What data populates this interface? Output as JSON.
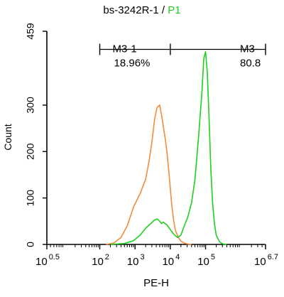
{
  "title": {
    "main": "bs-3242R-1 / ",
    "gate": "P1"
  },
  "colors": {
    "control": "#f08c3a",
    "sample": "#1fd01f",
    "gate_label": "#1fd01f",
    "axis": "#000000"
  },
  "markers": [
    {
      "name": "M3-1",
      "percent": "18.96%",
      "x_start": 100,
      "x_end": 10000
    },
    {
      "name": "M3-",
      "percent": "80.8",
      "x_start": 10000,
      "x_end": 5011872
    }
  ],
  "chart_data": {
    "type": "line",
    "title": "bs-3242R-1 / P1",
    "xlabel": "PE-H",
    "ylabel": "Count",
    "x_scale": "log10",
    "xlim": [
      3.1623,
      5011872
    ],
    "ylim": [
      0,
      459
    ],
    "x_ticks": [
      {
        "base": "10",
        "exp": "0.5",
        "value": 3.1623
      },
      {
        "base": "10",
        "exp": "2",
        "value": 100
      },
      {
        "base": "10",
        "exp": "3",
        "value": 1000
      },
      {
        "base": "10",
        "exp": "4",
        "value": 10000
      },
      {
        "base": "10",
        "exp": "5",
        "value": 100000
      },
      {
        "base": "10",
        "exp": "6.7",
        "value": 5011872
      }
    ],
    "y_ticks": [
      "0",
      "100",
      "200",
      "300",
      "459"
    ],
    "y_tick_values": [
      0,
      100,
      200,
      300,
      459
    ],
    "grid": false,
    "series": [
      {
        "color": "#f08c3a",
        "x": [
          150,
          250,
          400,
          600,
          900,
          1400,
          2000,
          2500,
          3000,
          3600,
          4200,
          5000,
          5600,
          6300,
          7100,
          8000,
          9000,
          10000,
          11000,
          12500,
          14000,
          17000,
          20000,
          25000,
          30000,
          40000
        ],
        "y": [
          0,
          3,
          15,
          40,
          80,
          110,
          140,
          180,
          220,
          270,
          295,
          300,
          280,
          255,
          230,
          200,
          160,
          120,
          85,
          50,
          30,
          15,
          7,
          3,
          1,
          0
        ]
      },
      {
        "color": "#1fd01f",
        "x": [
          200,
          500,
          900,
          1400,
          2000,
          2800,
          3500,
          4200,
          5000,
          5600,
          6300,
          8000,
          10000,
          12500,
          16000,
          20000,
          25000,
          31600,
          40000,
          50000,
          63000,
          79000,
          89000,
          100000,
          112000,
          126000,
          141000,
          158000,
          178000,
          200000,
          251000,
          316000,
          400000
        ],
        "y": [
          0,
          2,
          8,
          20,
          35,
          45,
          52,
          55,
          50,
          45,
          48,
          42,
          32,
          22,
          15,
          20,
          40,
          60,
          90,
          140,
          230,
          330,
          400,
          415,
          370,
          270,
          160,
          90,
          45,
          20,
          5,
          1,
          0
        ]
      }
    ]
  }
}
